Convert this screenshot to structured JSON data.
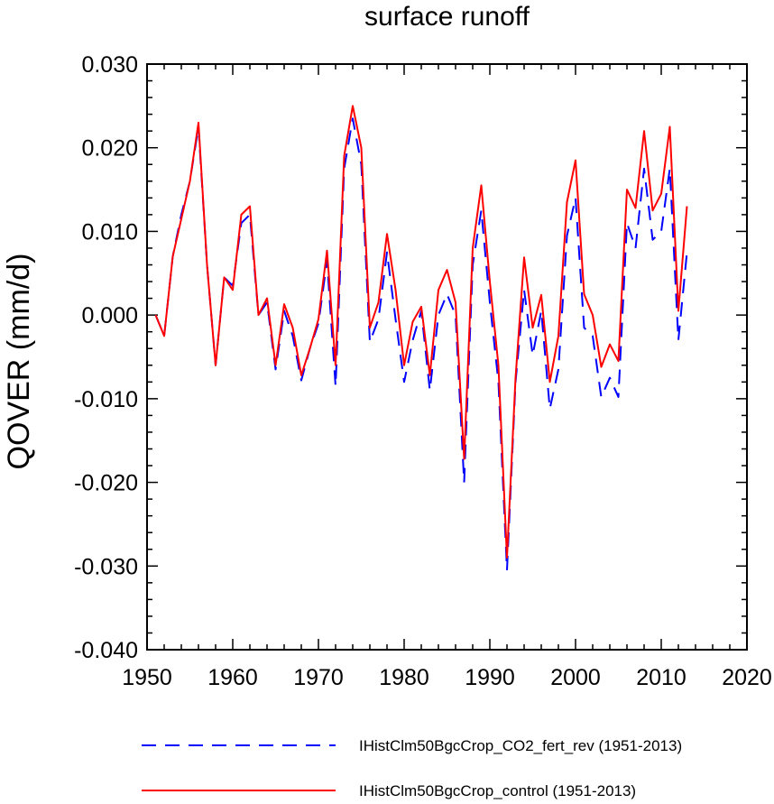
{
  "chart_data": {
    "type": "line",
    "title": "surface runoff",
    "xlabel": "",
    "ylabel": "QOVER  (mm/d)",
    "xlim": [
      1950,
      2020
    ],
    "ylim": [
      -0.04,
      0.03
    ],
    "xticks": [
      1950,
      1960,
      1970,
      1980,
      1990,
      2000,
      2010,
      2020
    ],
    "xtick_labels": [
      "1950",
      "1960",
      "1970",
      "1980",
      "1990",
      "2000",
      "2010",
      "2020"
    ],
    "yticks": [
      -0.04,
      -0.03,
      -0.02,
      -0.01,
      0.0,
      0.01,
      0.02,
      0.03
    ],
    "ytick_labels": [
      "-0.040",
      "-0.030",
      "-0.020",
      "-0.010",
      "0.000",
      "0.010",
      "0.020",
      "0.030"
    ],
    "grid": false,
    "legend_position": "bottom",
    "x": [
      1951,
      1952,
      1953,
      1954,
      1955,
      1956,
      1957,
      1958,
      1959,
      1960,
      1961,
      1962,
      1963,
      1964,
      1965,
      1966,
      1967,
      1968,
      1969,
      1970,
      1971,
      1972,
      1973,
      1974,
      1975,
      1976,
      1977,
      1978,
      1979,
      1980,
      1981,
      1982,
      1983,
      1984,
      1985,
      1986,
      1987,
      1988,
      1989,
      1990,
      1991,
      1992,
      1993,
      1994,
      1995,
      1996,
      1997,
      1998,
      1999,
      2000,
      2001,
      2002,
      2003,
      2004,
      2005,
      2006,
      2007,
      2008,
      2009,
      2010,
      2011,
      2012,
      2013
    ],
    "series": [
      {
        "name": "IHistClm50BgcCrop_CO2_fert_rev (1951-2013)",
        "color": "#0000ff",
        "style": "dashed",
        "values": [
          0.0,
          -0.0025,
          0.007,
          0.012,
          0.016,
          0.0225,
          0.006,
          -0.006,
          0.0045,
          0.0035,
          0.011,
          0.012,
          0.0,
          0.0015,
          -0.0065,
          0.0005,
          -0.0025,
          -0.0078,
          -0.004,
          -0.001,
          0.0065,
          -0.0085,
          0.0175,
          0.0235,
          0.018,
          -0.0032,
          -0.0005,
          0.0075,
          -0.0005,
          -0.008,
          -0.003,
          0.0005,
          -0.009,
          0.0,
          0.0025,
          0.0,
          -0.02,
          0.006,
          0.0125,
          0.0015,
          -0.008,
          -0.0305,
          -0.008,
          0.003,
          -0.0048,
          0.0005,
          -0.0112,
          -0.0065,
          0.0095,
          0.014,
          -0.0015,
          -0.0025,
          -0.0098,
          -0.0075,
          -0.0098,
          0.011,
          0.008,
          0.0175,
          0.009,
          0.01,
          0.0175,
          -0.003,
          0.0075
        ]
      },
      {
        "name": "IHistClm50BgcCrop_control (1951-2013)",
        "color": "#ff0000",
        "style": "solid",
        "values": [
          0.0,
          -0.0025,
          0.007,
          0.0115,
          0.016,
          0.023,
          0.006,
          -0.006,
          0.0045,
          0.003,
          0.012,
          0.013,
          0.0,
          0.002,
          -0.006,
          0.0013,
          -0.0015,
          -0.0072,
          -0.004,
          -0.0005,
          0.0077,
          -0.006,
          0.019,
          0.025,
          0.02,
          -0.0015,
          0.0015,
          0.0097,
          0.003,
          -0.006,
          -0.0008,
          0.001,
          -0.0072,
          0.003,
          0.0054,
          0.0015,
          -0.0172,
          0.008,
          0.0155,
          0.004,
          -0.006,
          -0.029,
          -0.0075,
          0.0069,
          -0.0015,
          0.0024,
          -0.008,
          -0.0025,
          0.0135,
          0.0185,
          0.0025,
          0.0,
          -0.0062,
          -0.0035,
          -0.0055,
          0.015,
          0.0128,
          0.022,
          0.0125,
          0.0145,
          0.0225,
          0.0005,
          0.013
        ]
      }
    ]
  }
}
